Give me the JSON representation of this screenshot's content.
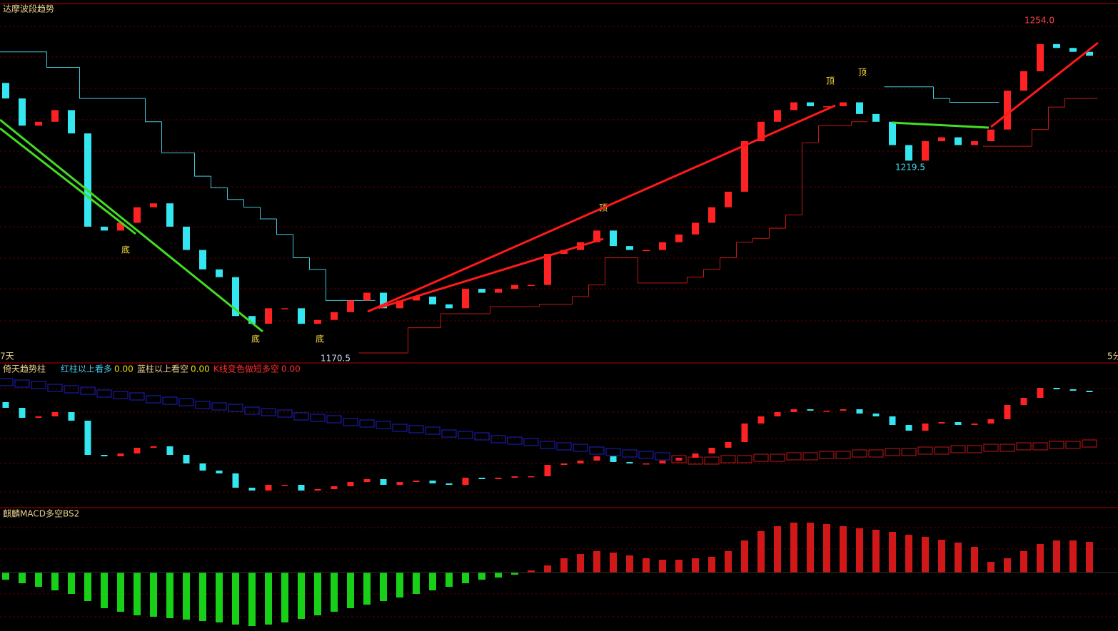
{
  "panels": {
    "main": {
      "title": "达摩波段趋势",
      "period_left": "7天",
      "period_right": "5分",
      "price_labels": [
        {
          "value": 1254.0,
          "label": "1254.0"
        },
        {
          "value": 1219.5,
          "label": "1219.5"
        },
        {
          "value": 1170.5,
          "label": "1170.5"
        }
      ],
      "annotations": [
        "底",
        "底",
        "底",
        "顶",
        "顶",
        "顶"
      ]
    },
    "trend": {
      "title": "倚天趋势柱",
      "legend": [
        {
          "name": "红柱以上看多",
          "value": "0.00"
        },
        {
          "name": "蓝柱以上看空",
          "value": "0.00"
        },
        {
          "name": "K线变色做短多空",
          "value": "0.00"
        }
      ]
    },
    "macd": {
      "title": "麒麟MACD多空BS2"
    }
  },
  "chart_data": {
    "type": "candlestick",
    "ylim": [
      1170.5,
      1254
    ],
    "mid_ylim": [
      1177,
      1254
    ],
    "macd_ylim": [
      -8,
      8
    ],
    "open": [
      1240,
      1236,
      1229,
      1230,
      1233,
      1227,
      1203,
      1202,
      1204,
      1208,
      1209,
      1203,
      1197,
      1192,
      1190,
      1180,
      1178,
      1182,
      1182,
      1178,
      1179,
      1181,
      1184,
      1186,
      1182,
      1184,
      1185,
      1183,
      1182,
      1187,
      1186,
      1187,
      1188,
      1188,
      1196,
      1197,
      1199,
      1202,
      1198,
      1197,
      1197,
      1199,
      1201,
      1204,
      1208,
      1212,
      1225,
      1230,
      1233,
      1235,
      1234,
      1234,
      1235,
      1232,
      1230,
      1224,
      1220,
      1225,
      1226,
      1224,
      1225,
      1228,
      1238,
      1243,
      1250,
      1249,
      1248
    ],
    "close": [
      1236,
      1229,
      1230,
      1233,
      1227,
      1203,
      1202,
      1204,
      1208,
      1209,
      1203,
      1197,
      1192,
      1190,
      1180,
      1178,
      1182,
      1182,
      1178,
      1179,
      1181,
      1184,
      1186,
      1182,
      1184,
      1185,
      1183,
      1182,
      1187,
      1186,
      1187,
      1188,
      1188,
      1196,
      1197,
      1199,
      1202,
      1198,
      1197,
      1197,
      1199,
      1201,
      1204,
      1208,
      1212,
      1225,
      1230,
      1233,
      1235,
      1234,
      1234,
      1235,
      1232,
      1230,
      1224,
      1220,
      1225,
      1226,
      1224,
      1225,
      1228,
      1238,
      1243,
      1250,
      1249,
      1248,
      1247
    ],
    "resistance": {
      "color": "#3fc8d8",
      "values": [
        1248,
        1248,
        1248,
        1244,
        1244,
        1236,
        1236,
        1236,
        1236,
        1230,
        1222,
        1222,
        1216,
        1213,
        1210,
        1208,
        1205,
        1201,
        1195,
        1192,
        1184,
        1184,
        1184,
        null,
        null,
        null,
        null,
        null,
        null,
        null,
        null,
        null,
        null,
        null,
        null,
        null,
        null,
        null,
        null,
        null,
        null,
        null,
        null,
        null,
        null,
        null,
        null,
        null,
        null,
        null,
        null,
        null,
        null,
        null,
        1239,
        1239,
        1239,
        1236,
        1235,
        1235,
        1235,
        null,
        null,
        null,
        null,
        null,
        null
      ]
    },
    "support": {
      "color": "#c01818",
      "values": [
        null,
        null,
        null,
        null,
        null,
        null,
        null,
        null,
        null,
        null,
        null,
        null,
        null,
        null,
        null,
        null,
        null,
        null,
        null,
        null,
        null,
        null,
        1170.5,
        1170.5,
        1170.5,
        1177,
        1177,
        1180.6,
        1180.6,
        1180.6,
        1182.4,
        1182.4,
        1182.4,
        1183,
        1183,
        1185,
        1188,
        1195,
        1195,
        1188.5,
        1188.5,
        1188.5,
        1190,
        1192,
        1195,
        1199,
        1200,
        1202.6,
        1206,
        1224.6,
        1229,
        1229,
        1230,
        null,
        null,
        null,
        null,
        null,
        null,
        null,
        1223.7,
        1223.7,
        1223.7,
        1228,
        1233.8,
        1236,
        1236
      ]
    },
    "trend_band": [
      1254,
      1253,
      1252,
      1250,
      1249,
      1248,
      1246,
      1245,
      1244,
      1242,
      1241,
      1240,
      1238,
      1237,
      1236,
      1234,
      1233,
      1232,
      1230,
      1229,
      1228,
      1226,
      1225,
      1224,
      1222,
      1221,
      1220,
      1218,
      1217,
      1216,
      1214,
      1213,
      1212,
      1210,
      1209,
      1208,
      1206,
      1205,
      1204,
      1203,
      1202,
      1200,
      1199,
      1199,
      1200,
      1200,
      1201,
      1201,
      1202,
      1202,
      1203,
      1203,
      1204,
      1204,
      1205,
      1205,
      1206,
      1206,
      1207,
      1207,
      1208,
      1208,
      1209,
      1209,
      1210,
      1210,
      1211
    ],
    "macd": [
      -1,
      -1.5,
      -2,
      -2.5,
      -3,
      -4,
      -5,
      -5.5,
      -6,
      -6.2,
      -6.4,
      -6.6,
      -6.8,
      -7,
      -7.3,
      -7.5,
      -7.3,
      -7,
      -6.5,
      -6,
      -5.5,
      -5,
      -4.5,
      -4,
      -3.5,
      -3,
      -2.5,
      -2,
      -1.5,
      -1,
      -0.7,
      -0.3,
      0.3,
      1,
      2,
      2.6,
      3,
      2.8,
      2.4,
      2,
      1.8,
      1.8,
      2,
      2.2,
      3,
      4.5,
      5.8,
      6.5,
      7,
      7,
      6.8,
      6.5,
      6.2,
      6,
      5.7,
      5.3,
      5,
      4.6,
      4.2,
      3.6,
      1.5,
      2,
      3,
      4,
      4.5,
      4.5,
      4.3
    ],
    "up_color": "#ff2222",
    "down_color": "#33e6f0",
    "macd_up_color": "#d01818",
    "macd_down_color": "#18d018"
  }
}
